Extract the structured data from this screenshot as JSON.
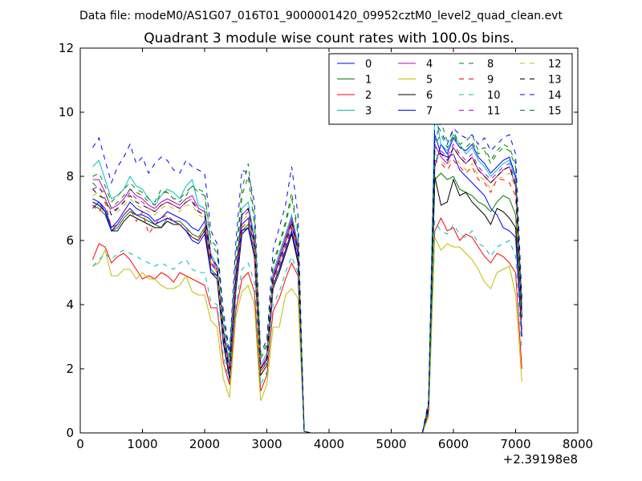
{
  "chart_data": {
    "type": "line",
    "suptitle": "Data file: modeM0/AS1G07_016T01_9000001420_09952cztM0_level2_quad_clean.evt",
    "title": "Quadrant 3 module wise count rates with 100.0s bins.",
    "xlabel": "",
    "ylabel": "",
    "xlim": [
      0,
      8000
    ],
    "ylim": [
      0,
      12
    ],
    "x_offset_label": "+2.39198e8",
    "xticks": [
      0,
      1000,
      2000,
      3000,
      4000,
      5000,
      6000,
      7000,
      8000
    ],
    "yticks": [
      0,
      2,
      4,
      6,
      8,
      10,
      12
    ],
    "grid": false,
    "legend_position": "top-right",
    "legend_columns": 4,
    "x": [
      200,
      300,
      400,
      500,
      600,
      700,
      800,
      900,
      1000,
      1100,
      1200,
      1300,
      1400,
      1500,
      1600,
      1700,
      1800,
      1900,
      2000,
      2100,
      2200,
      2300,
      2400,
      2500,
      2600,
      2700,
      2800,
      2900,
      3000,
      3100,
      3200,
      3300,
      3400,
      3500,
      3600,
      3700,
      3800,
      3900,
      4000,
      4100,
      4200,
      4300,
      4400,
      4500,
      4600,
      4700,
      4800,
      4900,
      5000,
      5100,
      5200,
      5300,
      5400,
      5500,
      5600,
      5700,
      5800,
      5900,
      6000,
      6100,
      6200,
      6300,
      6400,
      6500,
      6600,
      6700,
      6800,
      6900,
      7000,
      7100
    ],
    "series": [
      {
        "name": "0",
        "color": "#0000ff",
        "dash": "solid",
        "values": [
          7.3,
          7.2,
          7.0,
          6.4,
          6.6,
          6.9,
          7.2,
          7.0,
          6.9,
          6.8,
          6.6,
          6.7,
          6.9,
          6.8,
          6.7,
          6.6,
          6.4,
          6.3,
          6.6,
          5.3,
          5.0,
          3.0,
          1.9,
          4.7,
          6.5,
          6.7,
          5.8,
          2.0,
          2.3,
          4.8,
          5.3,
          5.9,
          6.5,
          5.6,
          0.05,
          0,
          0,
          0,
          0,
          0,
          0,
          0,
          0,
          0,
          0,
          0,
          0,
          0,
          0,
          0,
          0,
          0,
          0,
          0,
          0.8,
          8.3,
          9.0,
          8.7,
          9.2,
          8.9,
          8.8,
          9.0,
          8.6,
          8.4,
          8.1,
          8.3,
          8.5,
          8.6,
          8.0,
          4.0
        ]
      },
      {
        "name": "1",
        "color": "#008000",
        "dash": "solid",
        "values": [
          7.1,
          7.0,
          6.8,
          6.3,
          6.4,
          6.7,
          6.9,
          6.8,
          6.7,
          6.6,
          6.5,
          6.4,
          6.7,
          6.6,
          6.6,
          6.4,
          6.2,
          6.1,
          6.4,
          5.1,
          4.9,
          2.9,
          1.8,
          4.5,
          6.3,
          6.5,
          5.6,
          1.9,
          2.2,
          4.6,
          5.1,
          5.7,
          6.3,
          5.4,
          0.05,
          0,
          0,
          0,
          0,
          0,
          0,
          0,
          0,
          0,
          0,
          0,
          0,
          0,
          0,
          0,
          0,
          0,
          0,
          0,
          0.7,
          7.9,
          8.1,
          7.9,
          8.0,
          7.6,
          7.5,
          7.4,
          7.2,
          7.1,
          6.9,
          7.2,
          7.4,
          7.3,
          6.8,
          3.6
        ]
      },
      {
        "name": "2",
        "color": "#ff0000",
        "dash": "solid",
        "values": [
          5.4,
          5.9,
          5.8,
          5.3,
          5.5,
          5.6,
          5.4,
          5.1,
          4.8,
          4.9,
          4.8,
          5.0,
          4.9,
          4.7,
          5.0,
          4.9,
          4.8,
          4.7,
          4.6,
          3.9,
          3.9,
          2.2,
          1.5,
          3.8,
          4.8,
          5.0,
          4.4,
          1.3,
          1.8,
          3.8,
          4.2,
          4.8,
          5.3,
          4.9,
          0.05,
          0,
          0,
          0,
          0,
          0,
          0,
          0,
          0,
          0,
          0,
          0,
          0,
          0,
          0,
          0,
          0,
          0,
          0,
          0,
          0.6,
          6.3,
          6.7,
          6.3,
          6.4,
          6.0,
          6.2,
          6.1,
          5.8,
          5.5,
          5.3,
          5.6,
          5.5,
          5.3,
          5.0,
          2.0
        ]
      },
      {
        "name": "3",
        "color": "#00bfbf",
        "dash": "solid",
        "values": [
          8.3,
          8.5,
          7.9,
          7.3,
          7.4,
          7.6,
          8.0,
          7.7,
          7.6,
          7.3,
          7.1,
          7.4,
          7.6,
          7.5,
          7.3,
          7.7,
          7.9,
          7.1,
          7.0,
          5.6,
          5.2,
          3.3,
          2.1,
          5.0,
          7.0,
          7.2,
          6.1,
          2.1,
          2.5,
          5.0,
          5.6,
          6.2,
          6.8,
          5.9,
          0.05,
          0,
          0,
          0,
          0,
          0,
          0,
          0,
          0,
          0,
          0,
          0,
          0,
          0,
          0,
          0,
          0,
          0,
          0,
          0,
          0.9,
          10.1,
          9.0,
          8.8,
          9.3,
          9.0,
          8.7,
          8.9,
          8.5,
          8.3,
          8.0,
          8.2,
          8.4,
          8.5,
          7.9,
          3.9
        ]
      },
      {
        "name": "4",
        "color": "#bf00bf",
        "dash": "solid",
        "values": [
          7.9,
          7.9,
          7.5,
          7.0,
          7.1,
          7.3,
          7.6,
          7.4,
          7.3,
          7.1,
          7.0,
          7.2,
          7.3,
          7.2,
          7.1,
          7.3,
          7.4,
          7.0,
          6.9,
          5.5,
          5.1,
          3.2,
          2.0,
          4.9,
          6.8,
          7.0,
          6.0,
          2.0,
          2.4,
          4.9,
          5.5,
          6.1,
          6.7,
          5.8,
          0.05,
          0,
          0,
          0,
          0,
          0,
          0,
          0,
          0,
          0,
          0,
          0,
          0,
          0,
          0,
          0,
          0,
          0,
          0,
          0,
          0.8,
          9.0,
          8.6,
          8.4,
          8.9,
          8.6,
          8.4,
          8.6,
          8.2,
          8.0,
          7.8,
          8.0,
          8.2,
          8.3,
          7.7,
          3.8
        ]
      },
      {
        "name": "5",
        "color": "#bfbf00",
        "dash": "solid",
        "values": [
          5.2,
          5.3,
          5.7,
          4.9,
          4.9,
          5.1,
          5.1,
          4.8,
          5.0,
          4.8,
          4.8,
          4.6,
          4.5,
          4.5,
          4.6,
          4.9,
          4.4,
          4.3,
          4.3,
          3.5,
          3.3,
          1.7,
          1.1,
          3.6,
          4.4,
          4.6,
          4.0,
          1.0,
          1.5,
          3.3,
          3.3,
          4.3,
          4.5,
          4.2,
          0.05,
          0,
          0,
          0,
          0,
          0,
          0,
          0,
          0,
          0,
          0,
          0,
          0,
          0,
          0,
          0,
          0,
          0,
          0,
          0,
          0.5,
          6.1,
          5.7,
          5.9,
          5.8,
          5.8,
          5.6,
          5.4,
          5.1,
          4.7,
          4.5,
          5.0,
          5.1,
          5.2,
          4.3,
          1.6
        ]
      },
      {
        "name": "6",
        "color": "#000000",
        "dash": "solid",
        "values": [
          7.2,
          7.1,
          6.9,
          6.3,
          6.3,
          6.6,
          6.8,
          6.7,
          6.6,
          6.5,
          6.4,
          6.4,
          6.6,
          6.5,
          6.5,
          6.3,
          6.1,
          6.0,
          6.3,
          5.0,
          4.8,
          2.8,
          1.7,
          4.4,
          6.2,
          6.4,
          5.5,
          1.8,
          2.1,
          4.5,
          5.0,
          5.6,
          6.2,
          5.3,
          0.05,
          0,
          0,
          0,
          0,
          0,
          0,
          0,
          0,
          0,
          0,
          0,
          0,
          0,
          0,
          0,
          0,
          0,
          0,
          0,
          0.7,
          8.0,
          7.1,
          7.2,
          7.9,
          7.4,
          7.5,
          7.2,
          7.0,
          6.8,
          6.5,
          7.0,
          6.9,
          6.7,
          6.4,
          3.0
        ]
      },
      {
        "name": "7",
        "color": "#0000ff",
        "dash": "solid",
        "values": [
          7.0,
          7.2,
          6.9,
          6.3,
          6.5,
          6.8,
          7.0,
          6.8,
          6.8,
          6.7,
          6.5,
          6.6,
          6.7,
          6.6,
          6.5,
          6.3,
          6.0,
          5.9,
          6.2,
          5.0,
          4.9,
          2.9,
          1.8,
          4.5,
          6.3,
          6.4,
          5.5,
          1.9,
          2.2,
          4.6,
          5.1,
          5.7,
          6.3,
          5.4,
          0.05,
          0,
          0,
          0,
          0,
          0,
          0,
          0,
          0,
          0,
          0,
          0,
          0,
          0,
          0,
          0,
          0,
          0,
          0,
          0,
          0.7,
          9.3,
          8.7,
          8.6,
          8.7,
          8.2,
          8.0,
          7.8,
          7.6,
          7.4,
          7.0,
          6.8,
          6.4,
          6.3,
          6.1,
          3.0
        ]
      },
      {
        "name": "8",
        "color": "#008000",
        "dash": "dashed",
        "values": [
          7.8,
          7.6,
          7.5,
          7.0,
          7.2,
          7.4,
          7.6,
          7.5,
          7.4,
          7.2,
          7.1,
          7.5,
          7.5,
          7.3,
          7.2,
          7.4,
          7.7,
          7.6,
          7.5,
          6.0,
          5.8,
          3.6,
          2.4,
          5.5,
          7.6,
          8.4,
          6.7,
          2.4,
          2.8,
          5.3,
          5.9,
          6.6,
          7.5,
          6.3,
          0.05,
          0,
          0,
          0,
          0,
          0,
          0,
          0,
          0,
          0,
          0,
          0,
          0,
          0,
          0,
          0,
          0,
          0,
          0,
          0,
          0.9,
          9.1,
          9.7,
          9.1,
          9.4,
          9.0,
          9.1,
          9.3,
          8.8,
          8.9,
          8.5,
          8.8,
          9.0,
          8.9,
          8.4,
          3.8
        ]
      },
      {
        "name": "9",
        "color": "#ff0000",
        "dash": "dashed",
        "values": [
          7.1,
          6.9,
          7.2,
          6.4,
          6.5,
          6.8,
          7.0,
          6.6,
          6.9,
          6.2,
          6.5,
          6.7,
          6.8,
          6.6,
          6.5,
          6.4,
          6.1,
          6.0,
          6.4,
          5.2,
          5.1,
          3.0,
          1.9,
          4.6,
          6.4,
          6.6,
          5.6,
          1.9,
          2.2,
          4.7,
          5.2,
          5.8,
          6.4,
          5.5,
          0.05,
          0,
          0,
          0,
          0,
          0,
          0,
          0,
          0,
          0,
          0,
          0,
          0,
          0,
          0,
          0,
          0,
          0,
          0,
          0,
          0.7,
          8.5,
          8.4,
          8.2,
          8.5,
          8.3,
          8.1,
          8.3,
          7.9,
          7.8,
          7.5,
          7.9,
          7.9,
          7.8,
          7.4,
          3.2
        ]
      },
      {
        "name": "10",
        "color": "#00bfbf",
        "dash": "dashed",
        "values": [
          5.2,
          5.4,
          5.6,
          5.4,
          5.6,
          5.7,
          5.6,
          5.5,
          5.4,
          5.3,
          5.2,
          5.3,
          5.2,
          5.1,
          5.3,
          5.4,
          5.1,
          5.0,
          5.0,
          4.1,
          4.0,
          2.4,
          1.6,
          4.0,
          5.1,
          5.3,
          4.7,
          1.5,
          1.9,
          4.0,
          4.4,
          5.0,
          5.5,
          5.0,
          0.05,
          0,
          0,
          0,
          0,
          0,
          0,
          0,
          0,
          0,
          0,
          0,
          0,
          0,
          0,
          0,
          0,
          0,
          0,
          0,
          0.6,
          6.6,
          6.3,
          6.2,
          6.5,
          6.2,
          6.1,
          6.3,
          5.9,
          5.8,
          5.5,
          5.8,
          5.9,
          6.0,
          5.5,
          2.6
        ]
      },
      {
        "name": "11",
        "color": "#bf00bf",
        "dash": "dashed",
        "values": [
          7.6,
          7.7,
          7.3,
          6.9,
          7.0,
          7.2,
          7.5,
          7.3,
          7.2,
          7.0,
          6.9,
          7.1,
          7.2,
          7.1,
          7.0,
          7.2,
          7.3,
          6.9,
          6.8,
          5.4,
          5.0,
          3.1,
          1.9,
          4.8,
          6.7,
          6.9,
          5.9,
          1.9,
          2.3,
          4.8,
          5.4,
          6.0,
          6.6,
          5.7,
          0.05,
          0,
          0,
          0,
          0,
          0,
          0,
          0,
          0,
          0,
          0,
          0,
          0,
          0,
          0,
          0,
          0,
          0,
          0,
          0,
          0.8,
          8.9,
          8.8,
          8.6,
          9.0,
          8.7,
          8.5,
          8.7,
          8.3,
          8.1,
          7.9,
          8.1,
          8.3,
          8.4,
          7.8,
          3.7
        ]
      },
      {
        "name": "12",
        "color": "#bfbf00",
        "dash": "dashed",
        "values": [
          7.4,
          7.5,
          7.2,
          6.8,
          6.9,
          7.1,
          7.3,
          7.1,
          7.0,
          6.9,
          6.8,
          7.0,
          7.1,
          7.0,
          6.9,
          7.1,
          7.1,
          6.8,
          6.7,
          5.3,
          5.0,
          3.0,
          1.9,
          4.7,
          6.6,
          6.8,
          5.8,
          1.9,
          2.2,
          4.7,
          5.3,
          5.9,
          6.5,
          5.6,
          0.05,
          0,
          0,
          0,
          0,
          0,
          0,
          0,
          0,
          0,
          0,
          0,
          0,
          0,
          0,
          0,
          0,
          0,
          0,
          0,
          0.8,
          8.7,
          8.5,
          8.3,
          8.7,
          8.4,
          8.2,
          8.4,
          8.0,
          7.9,
          7.6,
          7.9,
          8.0,
          8.1,
          7.6,
          3.5
        ]
      },
      {
        "name": "13",
        "color": "#000000",
        "dash": "dashed",
        "values": [
          7.6,
          7.4,
          7.3,
          6.8,
          7.0,
          7.2,
          7.4,
          7.2,
          7.1,
          7.0,
          6.9,
          7.1,
          7.2,
          7.1,
          7.0,
          7.2,
          7.2,
          6.9,
          6.8,
          5.5,
          5.2,
          3.1,
          2.0,
          4.8,
          6.8,
          7.0,
          5.9,
          2.0,
          2.3,
          4.8,
          5.4,
          6.0,
          6.6,
          5.7,
          0.05,
          0,
          0,
          0,
          0,
          0,
          0,
          0,
          0,
          0,
          0,
          0,
          0,
          0,
          0,
          0,
          0,
          0,
          0,
          0,
          0.8,
          8.8,
          8.7,
          8.5,
          8.9,
          8.6,
          8.4,
          8.6,
          8.2,
          8.0,
          7.8,
          8.0,
          8.2,
          8.3,
          7.7,
          3.6
        ]
      },
      {
        "name": "14",
        "color": "#0000ff",
        "dash": "dashed",
        "values": [
          8.9,
          9.2,
          8.5,
          7.8,
          8.3,
          8.6,
          9.0,
          8.4,
          8.6,
          8.1,
          8.4,
          8.6,
          8.5,
          8.2,
          8.1,
          8.5,
          8.3,
          8.2,
          8.1,
          6.3,
          5.9,
          3.8,
          2.5,
          5.9,
          8.2,
          8.1,
          7.2,
          2.5,
          2.9,
          5.7,
          6.4,
          7.1,
          8.3,
          6.8,
          0.05,
          0,
          0,
          0,
          0,
          0,
          0,
          0,
          0,
          0,
          0,
          0,
          0,
          0,
          0,
          0,
          0,
          0,
          0,
          0,
          1.0,
          9.7,
          9.4,
          9.0,
          9.5,
          9.3,
          9.2,
          9.3,
          9.0,
          9.2,
          8.8,
          9.0,
          9.2,
          9.3,
          8.7,
          4.2
        ]
      },
      {
        "name": "15",
        "color": "#008000",
        "dash": "dashed",
        "values": [
          8.0,
          8.1,
          7.7,
          7.2,
          7.4,
          7.6,
          7.8,
          7.6,
          7.5,
          7.3,
          7.2,
          7.6,
          7.5,
          7.3,
          7.3,
          7.5,
          7.7,
          7.5,
          7.4,
          5.9,
          5.6,
          3.5,
          2.3,
          5.3,
          7.4,
          8.0,
          6.5,
          2.3,
          2.7,
          5.2,
          5.8,
          6.5,
          7.3,
          6.2,
          0.05,
          0,
          0,
          0,
          0,
          0,
          0,
          0,
          0,
          0,
          0,
          0,
          0,
          0,
          0,
          0,
          0,
          0,
          0,
          0,
          0.9,
          9.0,
          9.3,
          8.9,
          9.3,
          8.9,
          8.9,
          9.1,
          8.7,
          8.8,
          8.4,
          8.7,
          8.9,
          8.8,
          8.3,
          3.7
        ]
      }
    ]
  }
}
